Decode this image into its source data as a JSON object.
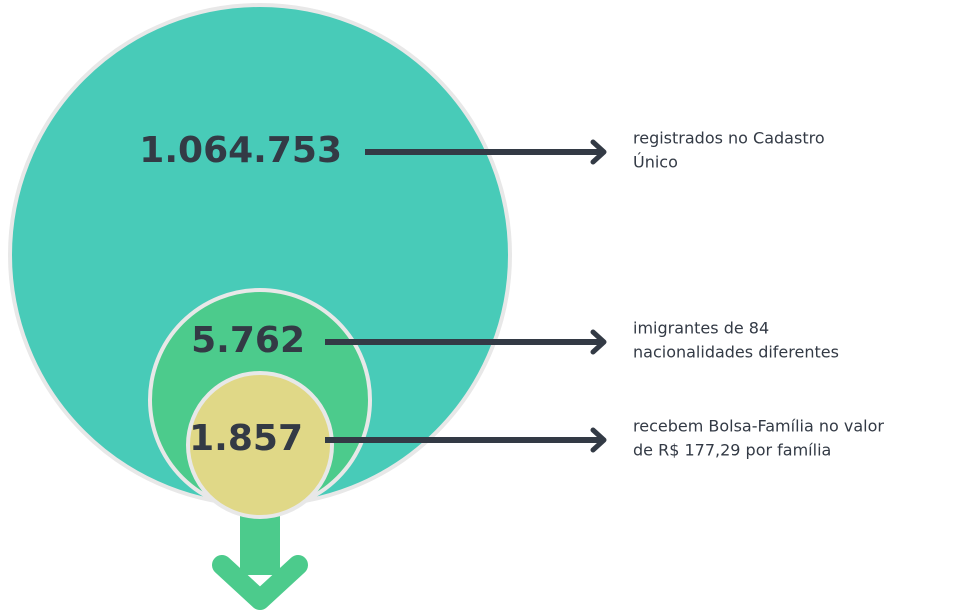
{
  "items": [
    {
      "number": "1.064.753",
      "description": [
        "registrados no Cadastro",
        "Único"
      ]
    },
    {
      "number": "5.762",
      "description": [
        "imigrantes de 84",
        "nacionalidades diferentes"
      ]
    },
    {
      "number": "1.857",
      "description": [
        "recebem Bolsa-Família no valor",
        "de R$ 177,29 por família"
      ]
    }
  ]
}
